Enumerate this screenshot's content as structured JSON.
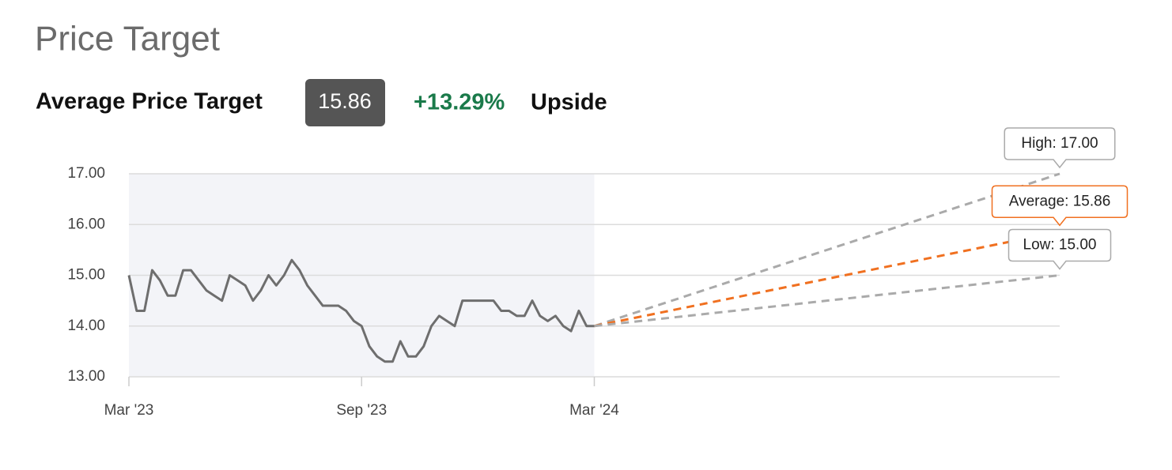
{
  "title": "Price Target",
  "summary": {
    "label": "Average Price Target",
    "badge": "15.86",
    "upside": "+13.29%",
    "upside_label": "Upside"
  },
  "chart_data": {
    "type": "line",
    "xlim": [
      0,
      24
    ],
    "xticks": [
      {
        "value": 0,
        "label": "Mar '23"
      },
      {
        "value": 6,
        "label": "Sep '23"
      },
      {
        "value": 12,
        "label": "Mar '24"
      }
    ],
    "ylim": [
      13,
      17
    ],
    "yticks": [
      {
        "value": 13,
        "label": "13.00"
      },
      {
        "value": 14,
        "label": "14.00"
      },
      {
        "value": 15,
        "label": "15.00"
      },
      {
        "value": 16,
        "label": "16.00"
      },
      {
        "value": 17,
        "label": "17.00"
      }
    ],
    "grid": true,
    "series": [
      {
        "color": "#6e6e6e",
        "x": [
          0,
          0.2,
          0.4,
          0.6,
          0.8,
          1,
          1.2,
          1.4,
          1.6,
          1.8,
          2,
          2.2,
          2.4,
          2.6,
          2.8,
          3,
          3.2,
          3.4,
          3.6,
          3.8,
          4,
          4.2,
          4.4,
          4.6,
          4.8,
          5,
          5.2,
          5.4,
          5.6,
          5.8,
          6,
          6.2,
          6.4,
          6.6,
          6.8,
          7,
          7.2,
          7.4,
          7.6,
          7.8,
          8,
          8.2,
          8.4,
          8.6,
          8.8,
          9,
          9.2,
          9.4,
          9.6,
          9.8,
          10,
          10.2,
          10.4,
          10.6,
          10.8,
          11,
          11.2,
          11.4,
          11.6,
          11.8,
          12
        ],
        "values": [
          15.0,
          14.3,
          14.3,
          15.1,
          14.9,
          14.6,
          14.6,
          15.1,
          15.1,
          14.9,
          14.7,
          14.6,
          14.5,
          15.0,
          14.9,
          14.8,
          14.5,
          14.7,
          15.0,
          14.8,
          15.0,
          15.3,
          15.1,
          14.8,
          14.6,
          14.4,
          14.4,
          14.4,
          14.3,
          14.1,
          14.0,
          13.6,
          13.4,
          13.3,
          13.3,
          13.7,
          13.4,
          13.4,
          13.6,
          14.0,
          14.2,
          14.1,
          14.0,
          14.5,
          14.5,
          14.5,
          14.5,
          14.5,
          14.3,
          14.3,
          14.2,
          14.2,
          14.5,
          14.2,
          14.1,
          14.2,
          14.0,
          13.9,
          14.3,
          14.0,
          14.0
        ]
      },
      {
        "color": "#aaaaaa",
        "dashed": true,
        "x": [
          12,
          24
        ],
        "values": [
          14.0,
          17.0
        ],
        "label": "High: 17.00"
      },
      {
        "color": "#f07020",
        "dashed": true,
        "x": [
          12,
          24
        ],
        "values": [
          14.0,
          15.86
        ],
        "label": "Average: 15.86"
      },
      {
        "color": "#aaaaaa",
        "dashed": true,
        "x": [
          12,
          24
        ],
        "values": [
          14.0,
          15.0
        ],
        "label": "Low: 15.00"
      }
    ]
  }
}
